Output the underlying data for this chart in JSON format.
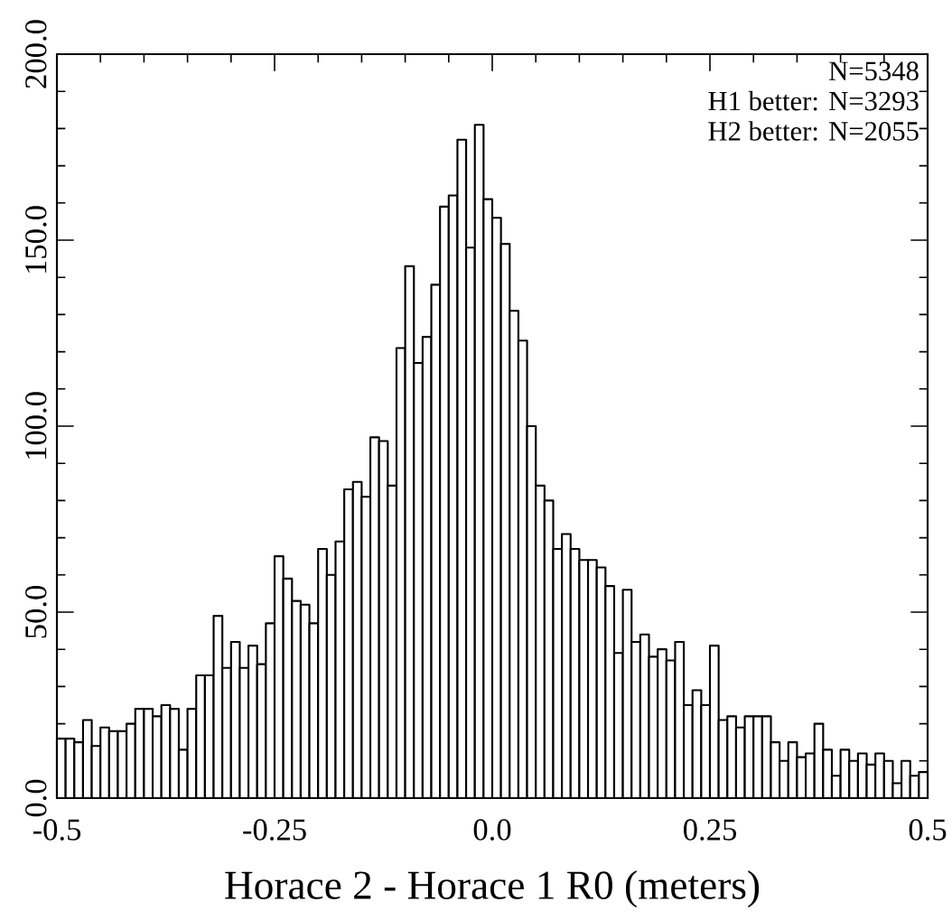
{
  "chart_data": {
    "type": "histogram",
    "xlabel": "Horace 2 - Horace 1 R0 (meters)",
    "annotations": [
      "N=5348",
      "H1 better: N=3293",
      "H2 better: N=2055"
    ],
    "bins": [
      -0.5,
      -0.49,
      -0.48,
      -0.47,
      -0.46,
      -0.45,
      -0.44,
      -0.43,
      -0.42,
      -0.41,
      -0.4,
      -0.39,
      -0.38,
      -0.37,
      -0.36,
      -0.35,
      -0.34,
      -0.33,
      -0.32,
      -0.31,
      -0.3,
      -0.29,
      -0.28,
      -0.27,
      -0.26,
      -0.25,
      -0.24,
      -0.23,
      -0.22,
      -0.21,
      -0.2,
      -0.19,
      -0.18,
      -0.17,
      -0.16,
      -0.15,
      -0.14,
      -0.13,
      -0.12,
      -0.11,
      -0.1,
      -0.09,
      -0.08,
      -0.07,
      -0.06,
      -0.05,
      -0.04,
      -0.03,
      -0.02,
      -0.01,
      0.0,
      0.01,
      0.02,
      0.03,
      0.04,
      0.05,
      0.06,
      0.07,
      0.08,
      0.09,
      0.1,
      0.11,
      0.12,
      0.13,
      0.14,
      0.15,
      0.16,
      0.17,
      0.18,
      0.19,
      0.2,
      0.21,
      0.22,
      0.23,
      0.24,
      0.25,
      0.26,
      0.27,
      0.28,
      0.29,
      0.3,
      0.31,
      0.32,
      0.33,
      0.34,
      0.35,
      0.36,
      0.37,
      0.38,
      0.39,
      0.4,
      0.41,
      0.42,
      0.43,
      0.44,
      0.45,
      0.46,
      0.47,
      0.48,
      0.49,
      0.5
    ],
    "values": [
      16,
      16,
      15,
      21,
      14,
      19,
      18,
      18,
      20,
      24,
      24,
      22,
      25,
      24,
      13,
      24,
      33,
      33,
      49,
      35,
      42,
      35,
      41,
      36,
      47,
      65,
      59,
      53,
      52,
      47,
      67,
      60,
      69,
      83,
      85,
      81,
      97,
      96,
      84,
      121,
      143,
      117,
      124,
      138,
      159,
      162,
      177,
      148,
      181,
      161,
      156,
      149,
      131,
      123,
      100,
      84,
      80,
      67,
      71,
      67,
      64,
      64,
      62,
      57,
      39,
      56,
      42,
      44,
      38,
      40,
      37,
      42,
      25,
      29,
      25,
      41,
      21,
      22,
      19,
      22,
      22,
      22,
      15,
      10,
      15,
      11,
      12,
      20,
      13,
      6,
      13,
      10,
      12,
      9,
      12,
      10,
      4,
      10,
      6,
      7
    ],
    "color": "#ffffff",
    "xlim": [
      -0.5,
      0.5
    ],
    "ylim": [
      0,
      200
    ],
    "xticks": [
      -0.5,
      -0.25,
      {
        "value": 0,
        "label": "0.0"
      },
      0.25,
      0.5
    ],
    "yticks": [
      {
        "value": 0,
        "label": "0.0"
      },
      {
        "value": 50,
        "label": "50.0"
      },
      {
        "value": 100,
        "label": "100.0"
      },
      {
        "value": 150,
        "label": "150.0"
      },
      {
        "value": 200,
        "label": "200.0"
      }
    ],
    "grid": false
  }
}
